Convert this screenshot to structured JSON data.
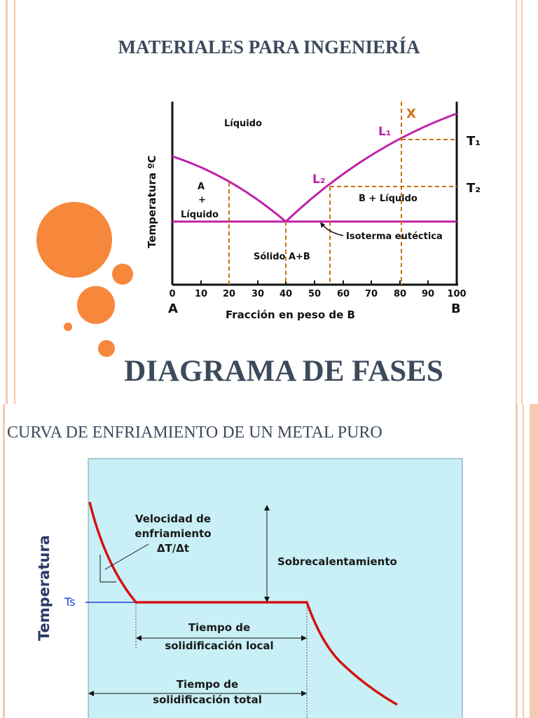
{
  "slide1": {
    "title": "MATERIALES PARA INGENIERÍA",
    "subtitle": "DIAGRAMA DE FASES",
    "diagram": {
      "regions": {
        "liquid": "Líquido",
        "a_liquid_1": "A",
        "a_liquid_2": "+",
        "a_liquid_3": "Líquido",
        "b_liquid": "B + Líquido",
        "solid": "Sólido A+B"
      },
      "isotherm_label": "Isoterma eutéctica",
      "ylabel": "Temperatura ºC",
      "xlabel": "Fracción en peso de B",
      "x_ticks": [
        "0",
        "10",
        "20",
        "30",
        "40",
        "50",
        "60",
        "70",
        "80",
        "90",
        "100"
      ],
      "end_labels": {
        "left": "A",
        "right": "B"
      },
      "point_labels": {
        "x": "X",
        "l1": "L₁",
        "l2": "L₂",
        "t1": "T₁",
        "t2": "T₂"
      },
      "colors": {
        "liquidus": "#c020a8",
        "dashed": "#c87010",
        "x_marker": "#d07010"
      }
    }
  },
  "slide2": {
    "title": "CURVA DE ENFRIAMIENTO DE UN METAL PURO",
    "chart": {
      "ylabel": "Temperatura",
      "ts_label": "Ts",
      "rate_label_1": "Velocidad de",
      "rate_label_2": "enfriamiento",
      "rate_label_3": "ΔT/Δt",
      "superheat_label": "Sobrecalentamiento",
      "local_label_1": "Tiempo de",
      "local_label_2": "solidificación local",
      "total_label_1": "Tiempo de",
      "total_label_2": "solidificación total",
      "colors": {
        "background": "#c8f0f6",
        "curve": "#d81010",
        "ts_line": "#1a3fd8",
        "text": "#1a1a1a"
      }
    }
  }
}
